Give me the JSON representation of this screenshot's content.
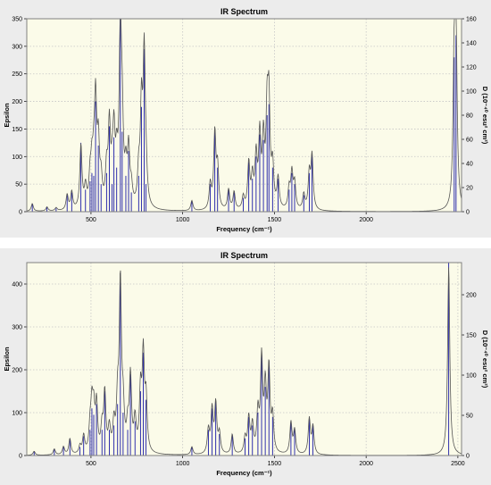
{
  "chart_data": [
    {
      "type": "line",
      "title": "IR Spectrum",
      "xlabel": "Frequency (cm⁻¹)",
      "ylabel": "Epsilon",
      "ylabel_right": "D (10⁻⁴⁰ esu² cm²)",
      "xlim": [
        150,
        2520
      ],
      "ylim": [
        0,
        350
      ],
      "y2lim": [
        0,
        160
      ],
      "x_ticks": [
        500,
        1000,
        1500,
        2000
      ],
      "y_ticks": [
        0,
        50,
        100,
        150,
        200,
        250,
        300,
        350
      ],
      "y2_ticks": [
        0,
        20,
        40,
        60,
        80,
        100,
        120,
        140,
        160
      ],
      "grid": true,
      "colors": {
        "plot_bg": "#fbfbe9",
        "curve": "#555555",
        "sticks": "#1a1aa6"
      },
      "series": [
        {
          "x": 180,
          "y": 15
        },
        {
          "x": 260,
          "y": 8
        },
        {
          "x": 310,
          "y": 6
        },
        {
          "x": 370,
          "y": 30
        },
        {
          "x": 395,
          "y": 35
        },
        {
          "x": 445,
          "y": 125
        },
        {
          "x": 470,
          "y": 40
        },
        {
          "x": 495,
          "y": 55
        },
        {
          "x": 505,
          "y": 70
        },
        {
          "x": 515,
          "y": 65
        },
        {
          "x": 525,
          "y": 200
        },
        {
          "x": 540,
          "y": 120
        },
        {
          "x": 555,
          "y": 50
        },
        {
          "x": 585,
          "y": 70
        },
        {
          "x": 600,
          "y": 155
        },
        {
          "x": 615,
          "y": 50
        },
        {
          "x": 625,
          "y": 135
        },
        {
          "x": 640,
          "y": 80
        },
        {
          "x": 660,
          "y": 350
        },
        {
          "x": 670,
          "y": 145
        },
        {
          "x": 690,
          "y": 65
        },
        {
          "x": 705,
          "y": 110
        },
        {
          "x": 720,
          "y": 35
        },
        {
          "x": 760,
          "y": 65
        },
        {
          "x": 775,
          "y": 190
        },
        {
          "x": 790,
          "y": 295
        },
        {
          "x": 800,
          "y": 50
        },
        {
          "x": 1050,
          "y": 20
        },
        {
          "x": 1150,
          "y": 50
        },
        {
          "x": 1175,
          "y": 150
        },
        {
          "x": 1190,
          "y": 80
        },
        {
          "x": 1250,
          "y": 40
        },
        {
          "x": 1280,
          "y": 35
        },
        {
          "x": 1330,
          "y": 25
        },
        {
          "x": 1360,
          "y": 90
        },
        {
          "x": 1380,
          "y": 60
        },
        {
          "x": 1400,
          "y": 100
        },
        {
          "x": 1420,
          "y": 140
        },
        {
          "x": 1440,
          "y": 130
        },
        {
          "x": 1460,
          "y": 175
        },
        {
          "x": 1470,
          "y": 195
        },
        {
          "x": 1490,
          "y": 80
        },
        {
          "x": 1520,
          "y": 60
        },
        {
          "x": 1580,
          "y": 40
        },
        {
          "x": 1595,
          "y": 70
        },
        {
          "x": 1610,
          "y": 50
        },
        {
          "x": 1660,
          "y": 30
        },
        {
          "x": 1690,
          "y": 70
        },
        {
          "x": 1705,
          "y": 105
        },
        {
          "x": 2480,
          "y": 280
        },
        {
          "x": 2490,
          "y": 320
        }
      ]
    },
    {
      "type": "line",
      "title": "IR Spectrum",
      "xlabel": "Frequency (cm⁻¹)",
      "ylabel": "Epsilon",
      "ylabel_right": "D (10⁻⁴⁰ esu² cm²)",
      "xlim": [
        150,
        2520
      ],
      "ylim": [
        0,
        450
      ],
      "y2lim": [
        0,
        240
      ],
      "x_ticks": [
        500,
        1000,
        1500,
        2000,
        2500
      ],
      "y_ticks": [
        0,
        100,
        200,
        300,
        400
      ],
      "y2_ticks": [
        0,
        50,
        100,
        150,
        200
      ],
      "grid": true,
      "colors": {
        "plot_bg": "#fbfbe9",
        "curve": "#555555",
        "sticks": "#1a1aa6"
      },
      "series": [
        {
          "x": 190,
          "y": 10
        },
        {
          "x": 300,
          "y": 15
        },
        {
          "x": 350,
          "y": 20
        },
        {
          "x": 385,
          "y": 40
        },
        {
          "x": 440,
          "y": 20
        },
        {
          "x": 460,
          "y": 45
        },
        {
          "x": 495,
          "y": 60
        },
        {
          "x": 505,
          "y": 110
        },
        {
          "x": 515,
          "y": 95
        },
        {
          "x": 530,
          "y": 120
        },
        {
          "x": 560,
          "y": 60
        },
        {
          "x": 575,
          "y": 150
        },
        {
          "x": 600,
          "y": 60
        },
        {
          "x": 625,
          "y": 70
        },
        {
          "x": 645,
          "y": 120
        },
        {
          "x": 660,
          "y": 425
        },
        {
          "x": 675,
          "y": 100
        },
        {
          "x": 700,
          "y": 60
        },
        {
          "x": 715,
          "y": 190
        },
        {
          "x": 740,
          "y": 80
        },
        {
          "x": 770,
          "y": 150
        },
        {
          "x": 785,
          "y": 240
        },
        {
          "x": 800,
          "y": 130
        },
        {
          "x": 1050,
          "y": 20
        },
        {
          "x": 1140,
          "y": 60
        },
        {
          "x": 1160,
          "y": 110
        },
        {
          "x": 1180,
          "y": 125
        },
        {
          "x": 1200,
          "y": 50
        },
        {
          "x": 1270,
          "y": 50
        },
        {
          "x": 1340,
          "y": 40
        },
        {
          "x": 1360,
          "y": 90
        },
        {
          "x": 1380,
          "y": 70
        },
        {
          "x": 1410,
          "y": 100
        },
        {
          "x": 1430,
          "y": 235
        },
        {
          "x": 1450,
          "y": 160
        },
        {
          "x": 1470,
          "y": 210
        },
        {
          "x": 1490,
          "y": 90
        },
        {
          "x": 1590,
          "y": 80
        },
        {
          "x": 1610,
          "y": 60
        },
        {
          "x": 1690,
          "y": 90
        },
        {
          "x": 1710,
          "y": 70
        },
        {
          "x": 2450,
          "y": 480
        }
      ]
    }
  ]
}
